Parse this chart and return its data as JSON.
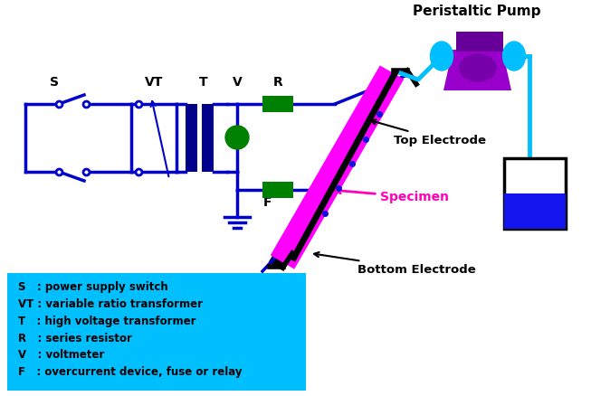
{
  "fig_width": 6.53,
  "fig_height": 4.38,
  "bg_color": "#ffffff",
  "legend_bg": "#00BFFF",
  "legend_text": [
    "S   : power supply switch",
    "VT : variable ratio transformer",
    "T   : high voltage transformer",
    "R   : series resistor",
    "V   : voltmeter",
    "F   : overcurrent device, fuse or relay"
  ],
  "circuit_color": "#0000CD",
  "dark_blue": "#00008B",
  "green_color": "#008000",
  "magenta_color": "#FF00FF",
  "cyan_color": "#00BFFF",
  "purple_color": "#9900CC",
  "purple_dark": "#660099",
  "blue_water": "#1414EE",
  "black": "#000000",
  "pink_label": "#FF00BB",
  "peristaltic_label": "Peristaltic Pump",
  "top_electrode_label": "Top Electrode",
  "bottom_electrode_label": "Bottom Electrode",
  "specimen_label": "Specimen"
}
